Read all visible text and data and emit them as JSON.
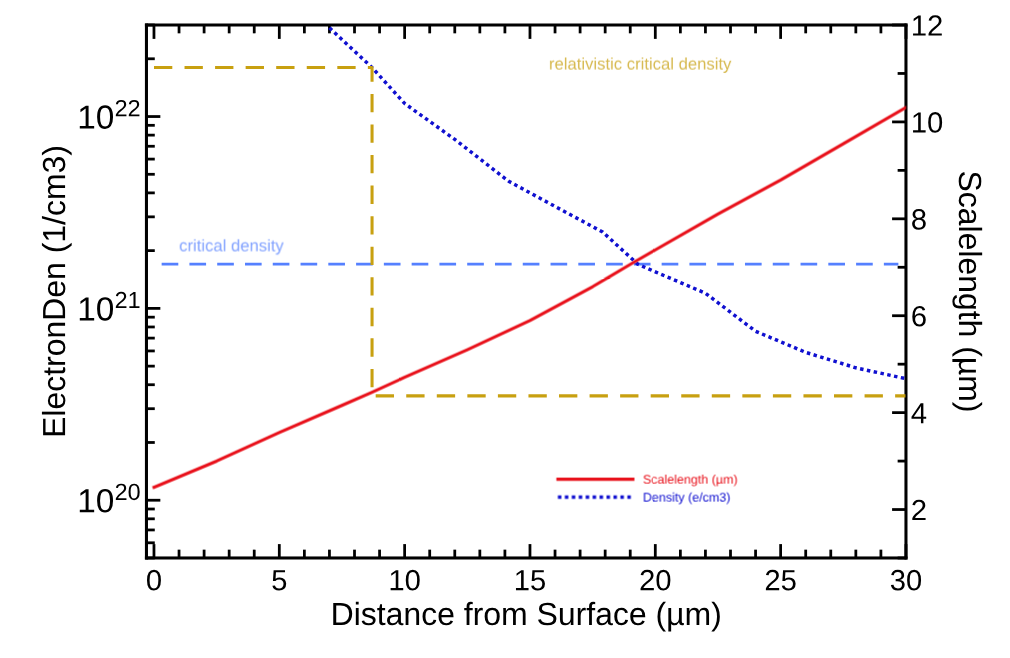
{
  "chart_data": {
    "type": "line",
    "xlabel": "Distance from Surface (µm)",
    "ylabel": "ElectronDen (1/cm3)",
    "y2label": "Scalelength (µm)",
    "xlim": [
      -0.3,
      30
    ],
    "xticks": [
      0,
      5,
      10,
      15,
      20,
      25,
      30
    ],
    "ylim": [
      5e+19,
      3e+22
    ],
    "yticks": [
      {
        "value": 1e+20,
        "label": "10$^{20}$"
      },
      {
        "value": 1e+21,
        "label": "10$^{21}$"
      },
      {
        "value": 1e+22,
        "label": "10$^{22}$"
      }
    ],
    "log": "y",
    "y2lim": [
      1,
      12
    ],
    "y2ticks": [
      2,
      4,
      6,
      8,
      10,
      12
    ],
    "legend": "bottom",
    "grid": false,
    "series": [
      {
        "name": "Scalelength (µm)",
        "color": "#e8101a",
        "axis": "y2",
        "line_style": "solid",
        "x": [
          0,
          2.5,
          5,
          7.5,
          8.7,
          10,
          12.5,
          15,
          17.5,
          19.1,
          20,
          22.5,
          25,
          27.5,
          30
        ],
        "values": [
          2.46,
          3.0,
          3.59,
          4.15,
          4.42,
          4.73,
          5.3,
          5.9,
          6.6,
          7.09,
          7.36,
          8.1,
          8.8,
          9.55,
          10.3
        ]
      },
      {
        "name": "Density (e/cm3)",
        "color": "#1010d0",
        "axis": "y",
        "line_style": "dotted",
        "x": [
          7,
          8.7,
          10,
          12,
          14.15,
          16,
          17.9,
          19.3,
          20,
          22,
          24,
          26,
          28,
          30
        ],
        "values": [
          2.9e+22,
          1.8e+22,
          1.17e+22,
          7.6e+21,
          4.6e+21,
          3.4e+21,
          2.5e+21,
          1.7e+21,
          1.55e+21,
          1.2e+21,
          7.6e+20,
          5.9e+20,
          4.9e+20,
          4.3e+20
        ]
      },
      {
        "color": "#c8a010",
        "axis": "y",
        "line_style": "dashed",
        "x": [
          0,
          8.7,
          8.7,
          30
        ],
        "values": [
          1.8e+22,
          1.8e+22,
          3.5e+20,
          3.5e+20
        ]
      }
    ],
    "ref_lines": [
      {
        "axis": "y",
        "value": 1.7e+21,
        "label": "critical density",
        "color": "#5580ff",
        "line_style": "dashed"
      }
    ],
    "annotations": [
      "relativistic critical density"
    ]
  }
}
